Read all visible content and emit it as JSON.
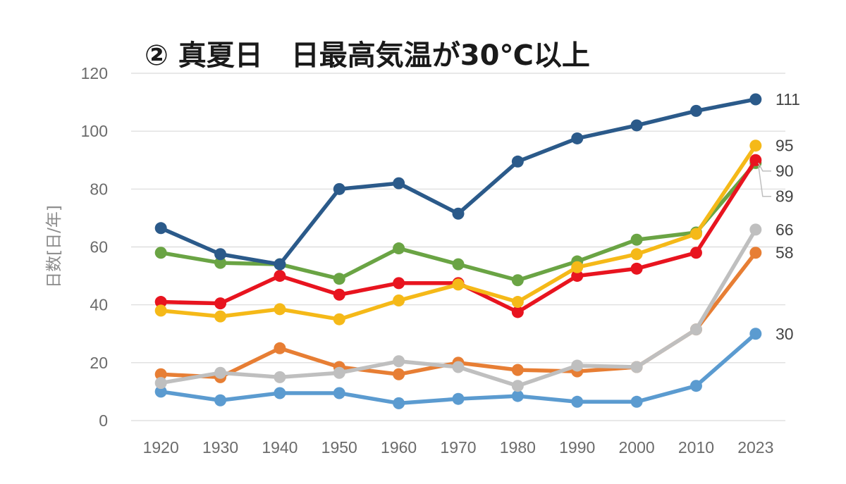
{
  "chart_data": {
    "type": "line",
    "title": "② 真夏日　日最高気温が30℃以上",
    "ylabel": "日数[日/年]",
    "xlabel": "",
    "categories": [
      "1920",
      "1930",
      "1940",
      "1950",
      "1960",
      "1970",
      "1980",
      "1990",
      "2000",
      "2010",
      "2023"
    ],
    "ylim": [
      0,
      120
    ],
    "yticks": [
      "0",
      "20",
      "40",
      "60",
      "80",
      "100",
      "120"
    ],
    "grid": true,
    "series": [
      {
        "color": "#2b5a8a",
        "end_label": "111",
        "values": [
          66.5,
          57.5,
          54,
          80,
          82,
          71.5,
          89.5,
          97.5,
          102,
          107,
          111
        ]
      },
      {
        "color": "#f5b918",
        "end_label": "95",
        "values": [
          38,
          36,
          38.5,
          35,
          41.5,
          47,
          41,
          53,
          57.5,
          64.5,
          95
        ]
      },
      {
        "color": "#e8141f",
        "end_label": "90",
        "values": [
          41,
          40.5,
          50,
          43.5,
          47.5,
          47.5,
          37.5,
          50,
          52.5,
          58,
          90
        ]
      },
      {
        "color": "#6aa444",
        "end_label": "89",
        "values": [
          58,
          54.5,
          54,
          49,
          59.5,
          54,
          48.5,
          55,
          62.5,
          65,
          89
        ]
      },
      {
        "color": "#bfbfbf",
        "end_label": "66",
        "values": [
          13,
          16.5,
          15,
          16.5,
          20.5,
          18.5,
          12,
          19,
          18.5,
          31.5,
          66
        ]
      },
      {
        "color": "#e77e34",
        "end_label": "58",
        "values": [
          16,
          15,
          25,
          18.5,
          16,
          20,
          17.5,
          17,
          18.5,
          31.5,
          58
        ]
      },
      {
        "color": "#5b9bd0",
        "end_label": "30",
        "values": [
          10,
          7,
          9.5,
          9.5,
          6,
          7.5,
          8.5,
          6.5,
          6.5,
          12,
          30
        ]
      }
    ]
  }
}
